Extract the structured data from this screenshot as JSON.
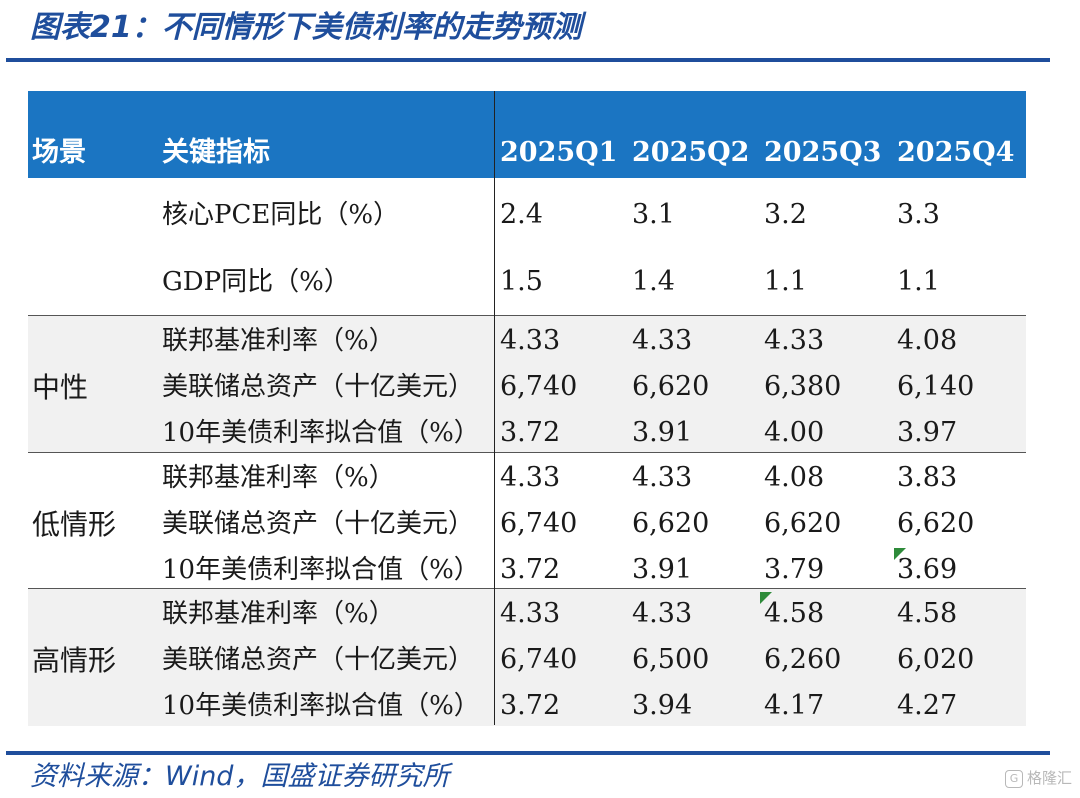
{
  "title": "图表21：不同情形下美债利率的走势预测",
  "table": {
    "headers": {
      "scenario": "场景",
      "indicator": "关键指标",
      "q1": "2025Q1",
      "q2": "2025Q2",
      "q3": "2025Q3",
      "q4": "2025Q4"
    },
    "base": [
      {
        "indicator": "核心PCE同比（%）",
        "values": [
          "2.4",
          "3.1",
          "3.2",
          "3.3"
        ]
      },
      {
        "indicator": "GDP同比（%）",
        "values": [
          "1.5",
          "1.4",
          "1.1",
          "1.1"
        ]
      }
    ],
    "scenarios": [
      {
        "name": "中性",
        "rows": [
          {
            "indicator": "联邦基准利率（%）",
            "values": [
              "4.33",
              "4.33",
              "4.33",
              "4.08"
            ]
          },
          {
            "indicator": "美联储总资产（十亿美元）",
            "values": [
              "6,740",
              "6,620",
              "6,380",
              "6,140"
            ]
          },
          {
            "indicator": "10年美债利率拟合值（%）",
            "values": [
              "3.72",
              "3.91",
              "4.00",
              "3.97"
            ]
          }
        ]
      },
      {
        "name": "低情形",
        "rows": [
          {
            "indicator": "联邦基准利率（%）",
            "values": [
              "4.33",
              "4.33",
              "4.08",
              "3.83"
            ]
          },
          {
            "indicator": "美联储总资产（十亿美元）",
            "values": [
              "6,740",
              "6,620",
              "6,620",
              "6,620"
            ]
          },
          {
            "indicator": "10年美债利率拟合值（%）",
            "values": [
              "3.72",
              "3.91",
              "3.79",
              "3.69"
            ]
          }
        ]
      },
      {
        "name": "高情形",
        "rows": [
          {
            "indicator": "联邦基准利率（%）",
            "values": [
              "4.33",
              "4.33",
              "4.58",
              "4.58"
            ]
          },
          {
            "indicator": "美联储总资产（十亿美元）",
            "values": [
              "6,740",
              "6,500",
              "6,260",
              "6,020"
            ]
          },
          {
            "indicator": "10年美债利率拟合值（%）",
            "values": [
              "3.72",
              "3.94",
              "4.17",
              "4.27"
            ]
          }
        ]
      }
    ]
  },
  "source": "资料来源：Wind，国盛证券研究所",
  "watermark": "格隆汇",
  "colors": {
    "brand": "#1f4e9c",
    "header_bg": "#1b75c2",
    "shade": "#f1f1f1",
    "marker": "#2e8b3a"
  }
}
